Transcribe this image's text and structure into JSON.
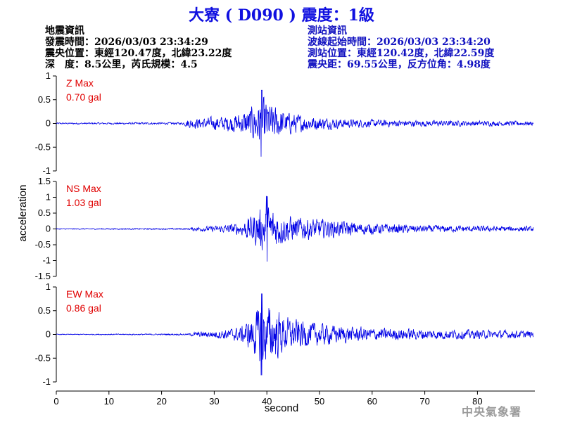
{
  "header": {
    "title": "大寮 ( D090 ) 震度：1級"
  },
  "earthquake_info": {
    "heading": "地震資訊",
    "origin_time": "發震時間：2026/03/03 23:34:29",
    "epicenter": "震央位置：東經120.47度，北緯23.22度",
    "depth_magnitude": "深　度：8.5公里，芮氏規模：4.5"
  },
  "station_info": {
    "heading": "測站資訊",
    "wave_start": "波線起始時間：2026/03/03 23:34:20",
    "location": "測站位置：東經120.42度，北緯22.59度",
    "distance": "震央距：69.55公里，反方位角：4.98度"
  },
  "agency": "中央氣象署",
  "colors": {
    "trace": "#0000e6",
    "max_label": "#e00000",
    "title": "#1010e0"
  },
  "chart_data": {
    "type": "line",
    "xlabel": "second",
    "ylabel": "acceleration",
    "xlim": [
      0,
      90
    ],
    "xticks": [
      0,
      10,
      20,
      30,
      40,
      50,
      60,
      70,
      80
    ],
    "panels": [
      {
        "name": "Z",
        "label": "Z Max",
        "max_value": "0.70 gal",
        "peak": 0.7,
        "ylim": [
          -1,
          1
        ],
        "yticks": [
          1,
          0.5,
          0,
          -0.5,
          -1
        ],
        "ytick_labels": [
          "1",
          "0.5",
          "0",
          "-0.5",
          "-1"
        ],
        "envelope": [
          [
            0,
            0.02
          ],
          [
            24,
            0.03
          ],
          [
            25,
            0.12
          ],
          [
            28,
            0.15
          ],
          [
            32,
            0.2
          ],
          [
            35,
            0.28
          ],
          [
            37,
            0.45
          ],
          [
            39,
            0.7
          ],
          [
            41,
            0.5
          ],
          [
            44,
            0.3
          ],
          [
            48,
            0.2
          ],
          [
            55,
            0.12
          ],
          [
            65,
            0.09
          ],
          [
            80,
            0.07
          ],
          [
            90,
            0.06
          ]
        ]
      },
      {
        "name": "NS",
        "label": "NS Max",
        "max_value": "1.03 gal",
        "peak": 1.03,
        "ylim": [
          -1.5,
          1.5
        ],
        "yticks": [
          1.5,
          1,
          0.5,
          0,
          -0.5,
          -1,
          -1.5
        ],
        "ytick_labels": [
          "1.5",
          "1",
          "0.5",
          "0",
          "-0.5",
          "-1",
          "-1.5"
        ],
        "envelope": [
          [
            0,
            0.02
          ],
          [
            25,
            0.03
          ],
          [
            26,
            0.08
          ],
          [
            30,
            0.12
          ],
          [
            35,
            0.25
          ],
          [
            37,
            0.55
          ],
          [
            40,
            1.03
          ],
          [
            42,
            0.7
          ],
          [
            45,
            0.5
          ],
          [
            50,
            0.4
          ],
          [
            55,
            0.3
          ],
          [
            60,
            0.22
          ],
          [
            70,
            0.15
          ],
          [
            80,
            0.12
          ],
          [
            90,
            0.1
          ]
        ]
      },
      {
        "name": "EW",
        "label": "EW Max",
        "max_value": "0.86 gal",
        "peak": 0.86,
        "ylim": [
          -1,
          1
        ],
        "yticks": [
          1,
          0.5,
          0,
          -0.5,
          -1
        ],
        "ytick_labels": [
          "1",
          "0.5",
          "0",
          "-0.5",
          "-1"
        ],
        "envelope": [
          [
            0,
            0.01
          ],
          [
            25,
            0.02
          ],
          [
            26,
            0.06
          ],
          [
            30,
            0.1
          ],
          [
            35,
            0.2
          ],
          [
            37,
            0.45
          ],
          [
            39,
            0.86
          ],
          [
            41,
            0.75
          ],
          [
            44,
            0.45
          ],
          [
            50,
            0.3
          ],
          [
            55,
            0.22
          ],
          [
            60,
            0.18
          ],
          [
            70,
            0.14
          ],
          [
            80,
            0.12
          ],
          [
            90,
            0.1
          ]
        ]
      }
    ]
  }
}
